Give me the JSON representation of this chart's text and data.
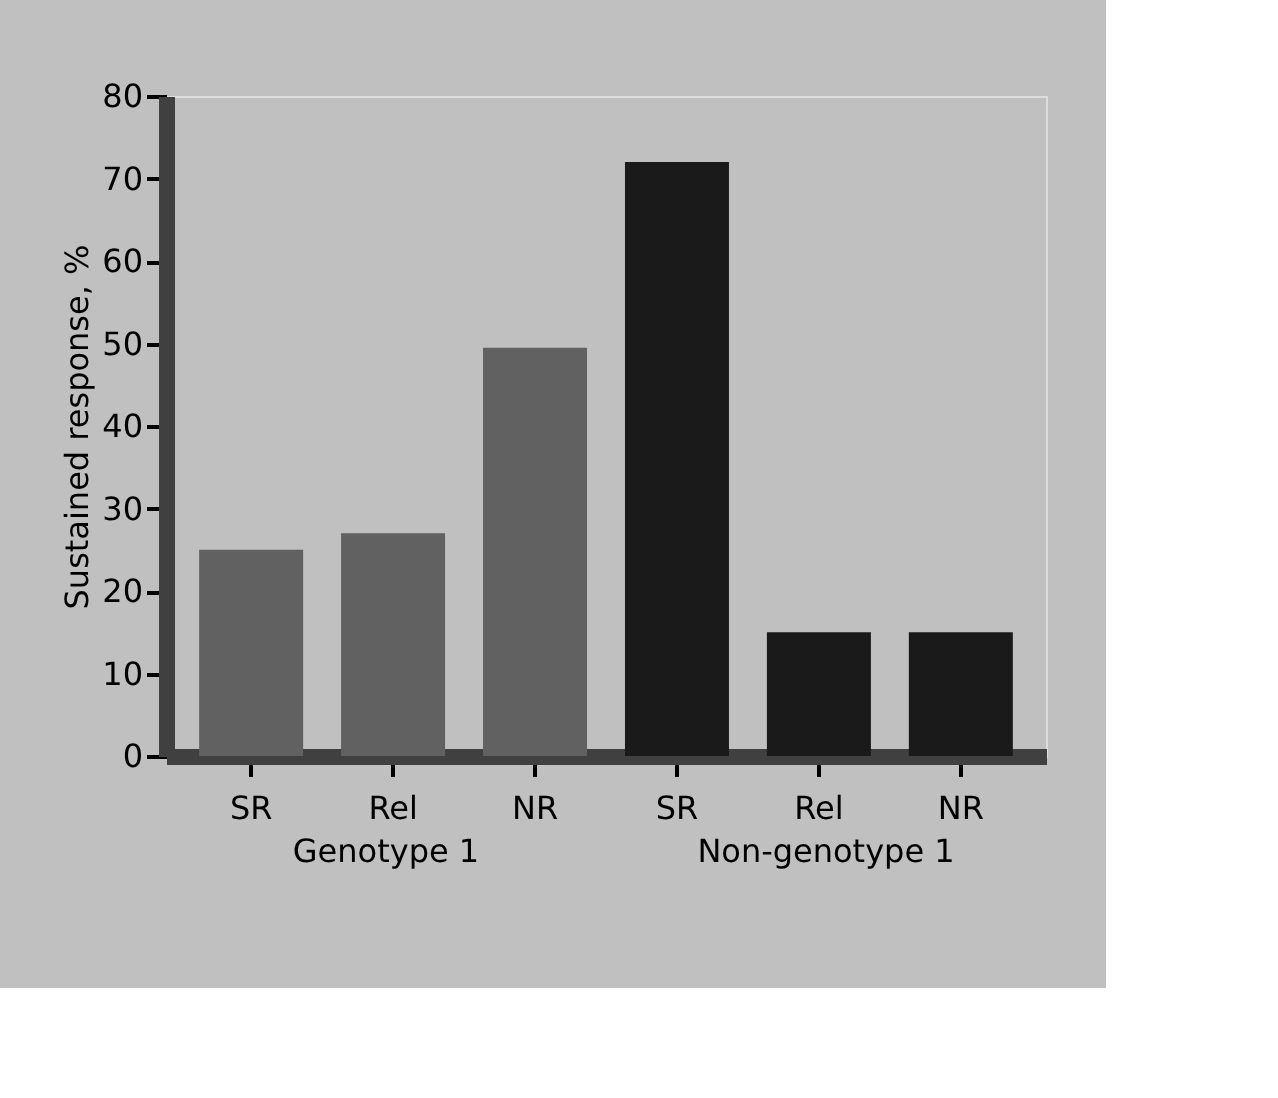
{
  "chart_data": {
    "type": "bar",
    "ylabel": "Sustained response, %",
    "categories": [
      "SR",
      "Rel",
      "NR",
      "SR",
      "Rel",
      "NR"
    ],
    "values": [
      25,
      27,
      49.5,
      72,
      15,
      15
    ],
    "colors": [
      "#616161",
      "#616161",
      "#616161",
      "#1a1a1a",
      "#1a1a1a",
      "#1a1a1a"
    ],
    "ylim": [
      0,
      80
    ],
    "yticks": [
      0,
      10,
      20,
      30,
      40,
      50,
      60,
      70,
      80
    ],
    "grid": false,
    "annotations": [
      "Genotype 1",
      "Non-genotype 1"
    ]
  }
}
